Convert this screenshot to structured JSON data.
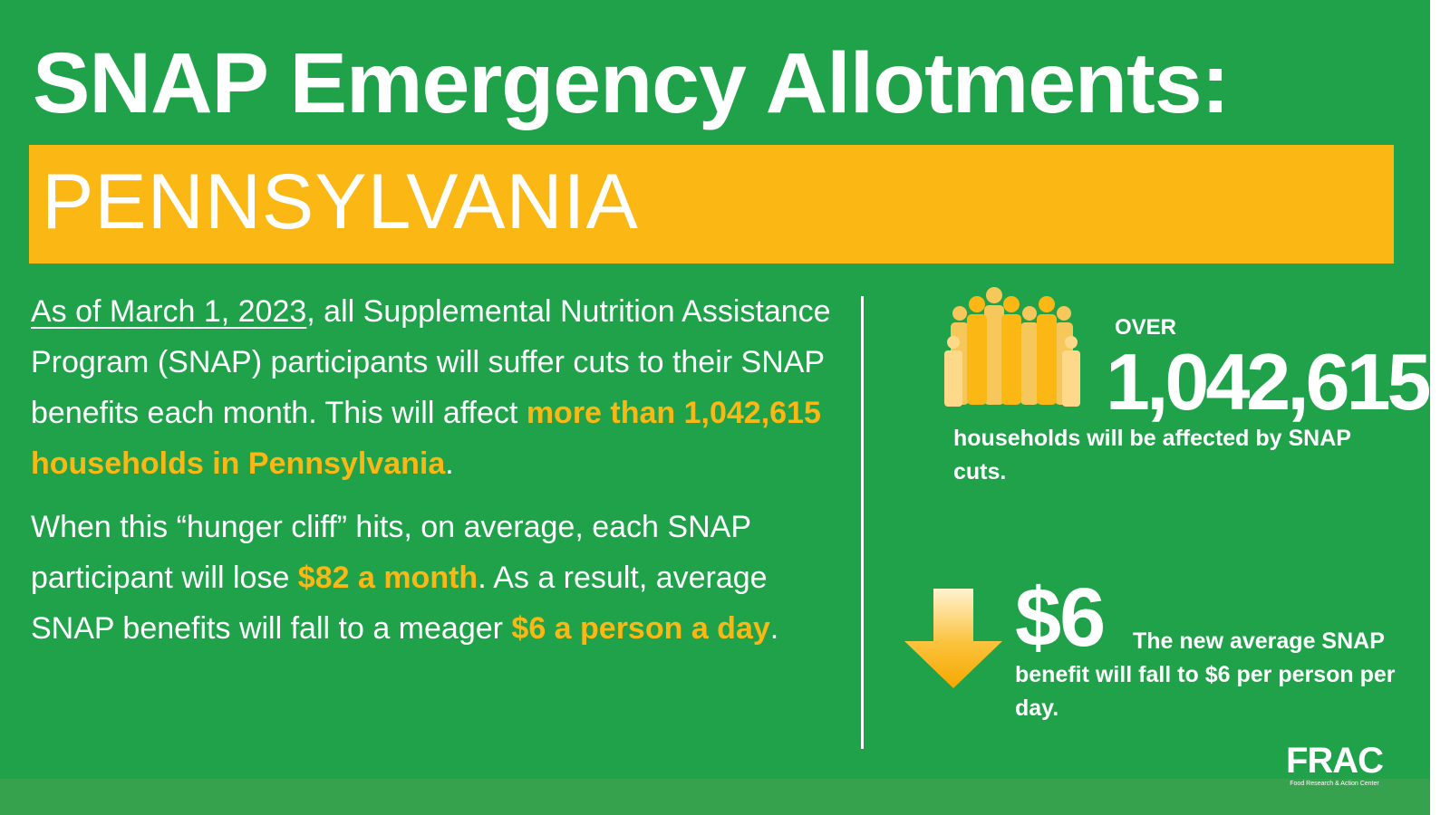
{
  "title": "SNAP Emergency Allotments:",
  "state": "PENNSYLVANIA",
  "left_text": {
    "p1": {
      "date": "As of March 1, 2023",
      "after_date": ", all Supplemental Nutrition Assistance Program (SNAP) participants will suffer cuts to their SNAP benefits each month. This will affect ",
      "highlight": "more than 1,042,615 households in Pennsylvania",
      "end": "."
    },
    "p2": {
      "intro": "When this “hunger cliff” hits, on average, each SNAP participant will lose ",
      "highlight1": "$82 a month",
      "middle": ". As a result, average SNAP benefits will fall to a meager ",
      "highlight2": "$6 a person a day",
      "end": "."
    }
  },
  "stat_households": {
    "over_label": "OVER",
    "number": "1,042,615",
    "description": "households will be affected by SNAP cuts."
  },
  "stat_benefit": {
    "amount": "$6",
    "description": "The new average SNAP benefit will fall to $6 per person per day."
  },
  "logo": {
    "name": "FRAC",
    "tagline": "Food Research & Action Center"
  },
  "icons": {
    "people": "people-group-icon",
    "arrow": "down-arrow-icon"
  },
  "colors": {
    "background": "#1fa24a",
    "accent": "#fbb714",
    "text": "#ffffff"
  }
}
